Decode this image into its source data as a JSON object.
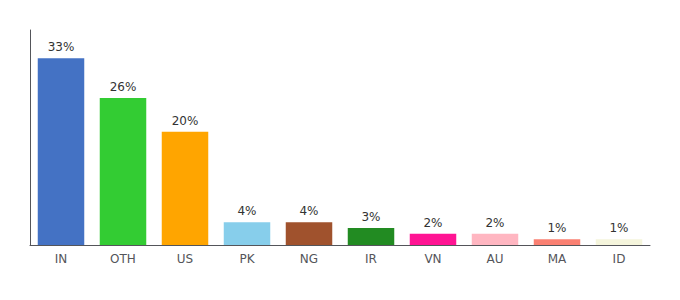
{
  "chart_data": {
    "type": "bar",
    "categories": [
      "IN",
      "OTH",
      "US",
      "PK",
      "NG",
      "IR",
      "VN",
      "AU",
      "MA",
      "ID"
    ],
    "values": [
      33,
      26,
      20,
      4,
      4,
      3,
      2,
      2,
      1,
      1
    ],
    "value_labels": [
      "33%",
      "26%",
      "20%",
      "4%",
      "4%",
      "3%",
      "2%",
      "2%",
      "1%",
      "1%"
    ],
    "colors": [
      "#4472C4",
      "#33CC33",
      "#FFA500",
      "#87CEEB",
      "#A0522D",
      "#228B22",
      "#FF1493",
      "#FFB6C1",
      "#FA8072",
      "#F5F5DC"
    ],
    "ylim": [
      0,
      38
    ],
    "data_labels": true,
    "tick_labels": "x",
    "grid": false
  }
}
